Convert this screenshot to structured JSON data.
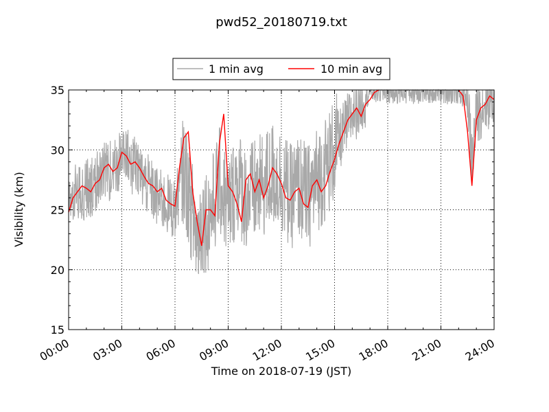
{
  "chart_data": {
    "type": "line",
    "title": "pwd52_20180719.txt",
    "xlabel": "Time on 2018-07-19 (JST)",
    "ylabel": "Visibility (km)",
    "xlim": [
      0,
      24
    ],
    "ylim": [
      15,
      35
    ],
    "x_ticks": [
      "00:00",
      "03:00",
      "06:00",
      "09:00",
      "12:00",
      "15:00",
      "18:00",
      "21:00",
      "24:00"
    ],
    "y_ticks": [
      "15",
      "20",
      "25",
      "30",
      "35"
    ],
    "grid": true,
    "legend_position": "top-center",
    "series": [
      {
        "name": "1 min avg",
        "color": "#a9a9a9",
        "x_hours": [
          0,
          0.5,
          1,
          1.5,
          2,
          2.5,
          3,
          3.5,
          4,
          4.5,
          5,
          5.5,
          6,
          6.5,
          7,
          7.25,
          7.5,
          8,
          8.5,
          9,
          9.5,
          10,
          10.5,
          11,
          11.5,
          12,
          12.5,
          13,
          13.5,
          14,
          14.5,
          15,
          15.5,
          16,
          16.5,
          17,
          17.5,
          18,
          19,
          20,
          21,
          21.5,
          22,
          22.5,
          22.75,
          23,
          23.5,
          24
        ],
        "y_km": [
          26,
          26.5,
          26.8,
          27,
          28.5,
          28.2,
          29.5,
          29,
          28,
          27,
          26,
          25.5,
          25,
          28.5,
          24.5,
          22.5,
          24,
          24.5,
          27.5,
          25,
          27.5,
          26,
          26.5,
          27,
          28,
          27.5,
          26,
          27,
          26,
          27.5,
          28.5,
          30,
          31.5,
          33,
          34,
          35,
          35,
          35,
          35,
          35,
          35,
          35,
          35,
          34.5,
          29,
          33,
          34,
          34.5
        ]
      },
      {
        "name": "10 min avg",
        "color": "#ff0000",
        "x_hours": [
          0,
          0.25,
          0.5,
          0.75,
          1,
          1.25,
          1.5,
          1.75,
          2,
          2.25,
          2.5,
          2.75,
          3,
          3.25,
          3.5,
          3.75,
          4,
          4.25,
          4.5,
          4.75,
          5,
          5.25,
          5.5,
          5.75,
          6,
          6.25,
          6.5,
          6.75,
          7,
          7.25,
          7.5,
          7.75,
          8,
          8.25,
          8.5,
          8.75,
          9,
          9.25,
          9.5,
          9.75,
          10,
          10.25,
          10.5,
          10.75,
          11,
          11.25,
          11.5,
          11.75,
          12,
          12.25,
          12.5,
          12.75,
          13,
          13.25,
          13.5,
          13.75,
          14,
          14.25,
          14.5,
          14.75,
          15,
          15.25,
          15.5,
          15.75,
          16,
          16.25,
          16.5,
          16.75,
          17,
          17.25,
          17.5,
          22,
          22.25,
          22.5,
          22.75,
          23,
          23.25,
          23.5,
          23.75,
          24
        ],
        "y_km": [
          24.8,
          26,
          26.5,
          27,
          26.8,
          26.5,
          27.2,
          27.5,
          28.5,
          28.8,
          28.2,
          28.5,
          29.8,
          29.5,
          28.8,
          29,
          28.5,
          27.8,
          27.2,
          27,
          26.5,
          26.8,
          25.8,
          25.5,
          25.3,
          28.5,
          31,
          31.5,
          26.5,
          24,
          22,
          25,
          25,
          24.5,
          30.5,
          33,
          27,
          26.5,
          25.5,
          24,
          27.5,
          28,
          26.5,
          27.5,
          26,
          27,
          28.5,
          28,
          27.2,
          26,
          25.8,
          26.5,
          26.8,
          25.5,
          25.2,
          27,
          27.5,
          26.5,
          27,
          28.2,
          29.2,
          30.5,
          31.5,
          32.5,
          33,
          33.5,
          32.8,
          33.8,
          34.2,
          34.8,
          35,
          35,
          34.5,
          31.5,
          27,
          32.5,
          33.5,
          33.8,
          34.5,
          34.2
        ]
      }
    ]
  }
}
